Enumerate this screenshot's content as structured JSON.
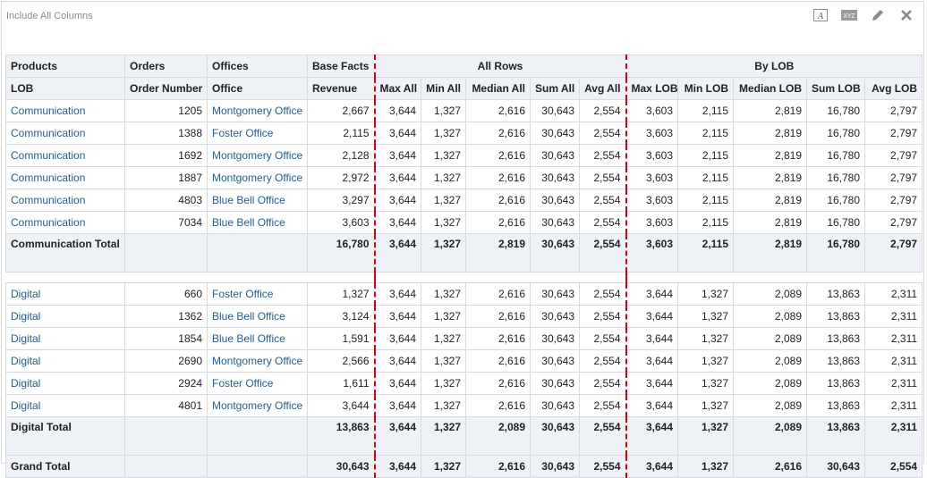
{
  "view": {
    "title": "Include All Columns",
    "toolbar": [
      {
        "name": "format-text-icon",
        "glyph": "A"
      },
      {
        "name": "data-format-icon",
        "glyph": "XYZ"
      },
      {
        "name": "edit-icon",
        "glyph": "pencil"
      },
      {
        "name": "close-icon",
        "glyph": "×"
      }
    ]
  },
  "header": {
    "groups": [
      "Products",
      "Orders",
      "Offices",
      "Base Facts",
      "All Rows",
      "By LOB"
    ],
    "columns": [
      "LOB",
      "Order Number",
      "Office",
      "Revenue",
      "Max All",
      "Min All",
      "Median All",
      "Sum All",
      "Avg All",
      "Max LOB",
      "Min LOB",
      "Median LOB",
      "Sum LOB",
      "Avg LOB"
    ]
  },
  "groups": [
    {
      "rows": [
        [
          "Communication",
          "1205",
          "Montgomery Office",
          "2,667",
          "3,644",
          "1,327",
          "2,616",
          "30,643",
          "2,554",
          "3,603",
          "2,115",
          "2,819",
          "16,780",
          "2,797"
        ],
        [
          "Communication",
          "1388",
          "Foster Office",
          "2,115",
          "3,644",
          "1,327",
          "2,616",
          "30,643",
          "2,554",
          "3,603",
          "2,115",
          "2,819",
          "16,780",
          "2,797"
        ],
        [
          "Communication",
          "1692",
          "Montgomery Office",
          "2,128",
          "3,644",
          "1,327",
          "2,616",
          "30,643",
          "2,554",
          "3,603",
          "2,115",
          "2,819",
          "16,780",
          "2,797"
        ],
        [
          "Communication",
          "1887",
          "Montgomery Office",
          "2,972",
          "3,644",
          "1,327",
          "2,616",
          "30,643",
          "2,554",
          "3,603",
          "2,115",
          "2,819",
          "16,780",
          "2,797"
        ],
        [
          "Communication",
          "4803",
          "Blue Bell Office",
          "3,297",
          "3,644",
          "1,327",
          "2,616",
          "30,643",
          "2,554",
          "3,603",
          "2,115",
          "2,819",
          "16,780",
          "2,797"
        ],
        [
          "Communication",
          "7034",
          "Blue Bell Office",
          "3,603",
          "3,644",
          "1,327",
          "2,616",
          "30,643",
          "2,554",
          "3,603",
          "2,115",
          "2,819",
          "16,780",
          "2,797"
        ]
      ],
      "total": [
        "Communication Total",
        "",
        "",
        "16,780",
        "3,644",
        "1,327",
        "2,819",
        "30,643",
        "2,554",
        "3,603",
        "2,115",
        "2,819",
        "16,780",
        "2,797"
      ]
    },
    {
      "rows": [
        [
          "Digital",
          "660",
          "Foster Office",
          "1,327",
          "3,644",
          "1,327",
          "2,616",
          "30,643",
          "2,554",
          "3,644",
          "1,327",
          "2,089",
          "13,863",
          "2,311"
        ],
        [
          "Digital",
          "1362",
          "Blue Bell Office",
          "3,124",
          "3,644",
          "1,327",
          "2,616",
          "30,643",
          "2,554",
          "3,644",
          "1,327",
          "2,089",
          "13,863",
          "2,311"
        ],
        [
          "Digital",
          "1854",
          "Blue Bell Office",
          "1,591",
          "3,644",
          "1,327",
          "2,616",
          "30,643",
          "2,554",
          "3,644",
          "1,327",
          "2,089",
          "13,863",
          "2,311"
        ],
        [
          "Digital",
          "2690",
          "Montgomery Office",
          "2,566",
          "3,644",
          "1,327",
          "2,616",
          "30,643",
          "2,554",
          "3,644",
          "1,327",
          "2,089",
          "13,863",
          "2,311"
        ],
        [
          "Digital",
          "2924",
          "Foster Office",
          "1,611",
          "3,644",
          "1,327",
          "2,616",
          "30,643",
          "2,554",
          "3,644",
          "1,327",
          "2,089",
          "13,863",
          "2,311"
        ],
        [
          "Digital",
          "4801",
          "Montgomery Office",
          "3,644",
          "3,644",
          "1,327",
          "2,616",
          "30,643",
          "2,554",
          "3,644",
          "1,327",
          "2,089",
          "13,863",
          "2,311"
        ]
      ],
      "total": [
        "Digital Total",
        "",
        "",
        "13,863",
        "3,644",
        "1,327",
        "2,089",
        "30,643",
        "2,554",
        "3,644",
        "1,327",
        "2,089",
        "13,863",
        "2,311"
      ]
    }
  ],
  "grand_total": [
    "Grand Total",
    "",
    "",
    "30,643",
    "3,644",
    "1,327",
    "2,616",
    "30,643",
    "2,554",
    "3,644",
    "1,327",
    "2,616",
    "30,643",
    "2,554"
  ],
  "colors": {
    "link": "#1f5d99",
    "header_bg": "#eef2f6",
    "separator": "#e00000"
  }
}
